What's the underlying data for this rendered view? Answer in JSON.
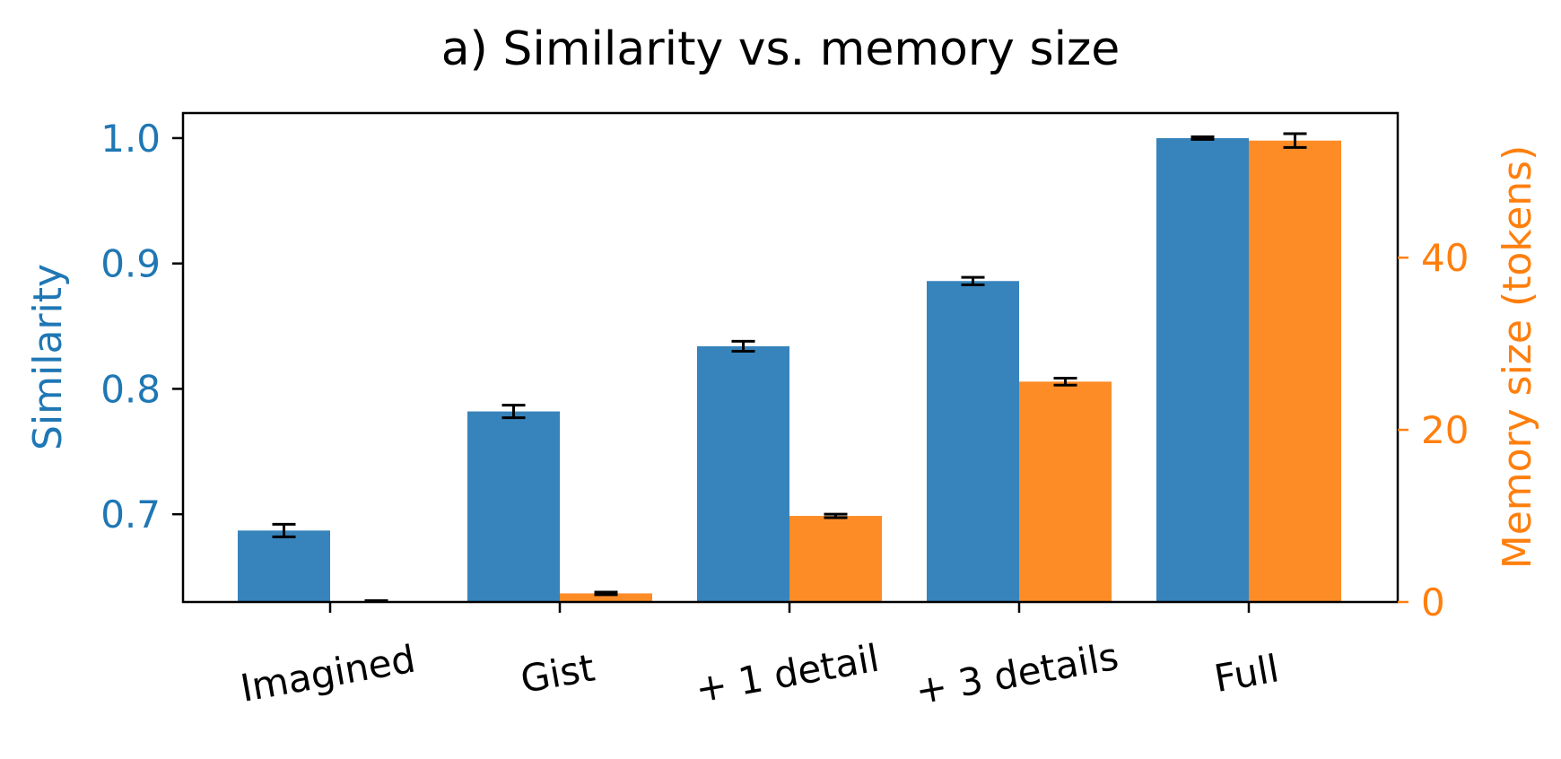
{
  "chart_data": {
    "type": "bar",
    "title": "a)   Similarity vs. memory size",
    "categories": [
      "Imagined",
      "Gist",
      "+ 1 detail",
      "+ 3 details",
      "Full"
    ],
    "series": [
      {
        "name": "Similarity",
        "axis": "left",
        "color": "#3784bc",
        "values": [
          0.687,
          0.782,
          0.834,
          0.886,
          1.0
        ],
        "errors": [
          0.005,
          0.005,
          0.004,
          0.003,
          0.001
        ]
      },
      {
        "name": "Memory size (tokens)",
        "axis": "right",
        "color": "#fd8c26",
        "values": [
          0.1,
          1.0,
          10.0,
          25.6,
          53.6
        ],
        "errors": [
          0.05,
          0.15,
          0.2,
          0.4,
          0.8
        ]
      }
    ],
    "y_left": {
      "label": "Similarity",
      "color": "#1f77b4",
      "ylim": [
        0.63,
        1.02
      ],
      "ticks": [
        0.7,
        0.8,
        0.9,
        1.0
      ],
      "tick_labels": [
        "0.7",
        "0.8",
        "0.9",
        "1.0"
      ]
    },
    "y_right": {
      "label": "Memory size (tokens)",
      "color": "#ff7f0e",
      "ylim": [
        0,
        56.8
      ],
      "ticks": [
        0,
        20,
        40
      ],
      "tick_labels": [
        "0",
        "20",
        "40"
      ]
    },
    "grid": false,
    "legend": "none"
  }
}
